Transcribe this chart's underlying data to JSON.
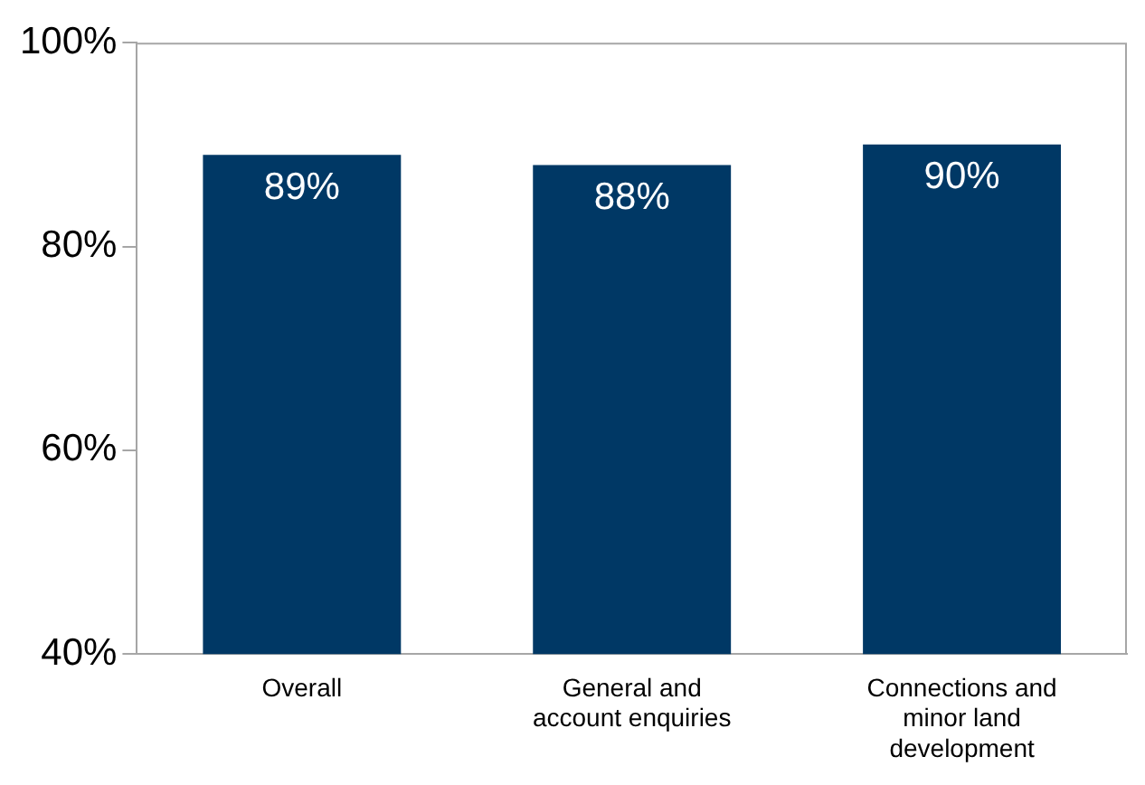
{
  "chart_data": {
    "type": "bar",
    "categories": [
      "Overall",
      "General and account enquiries",
      "Connections and minor land development"
    ],
    "values": [
      89,
      88,
      90
    ],
    "color": "#003865",
    "ylim": [
      40,
      100
    ],
    "yticks": [
      {
        "value": 40,
        "label": "40%"
      },
      {
        "value": 60,
        "label": "60%"
      },
      {
        "value": 80,
        "label": "80%"
      },
      {
        "value": 100,
        "label": "100%"
      }
    ],
    "value_labels": [
      "89%",
      "88%",
      "90%"
    ],
    "grid": false,
    "legend": false
  }
}
